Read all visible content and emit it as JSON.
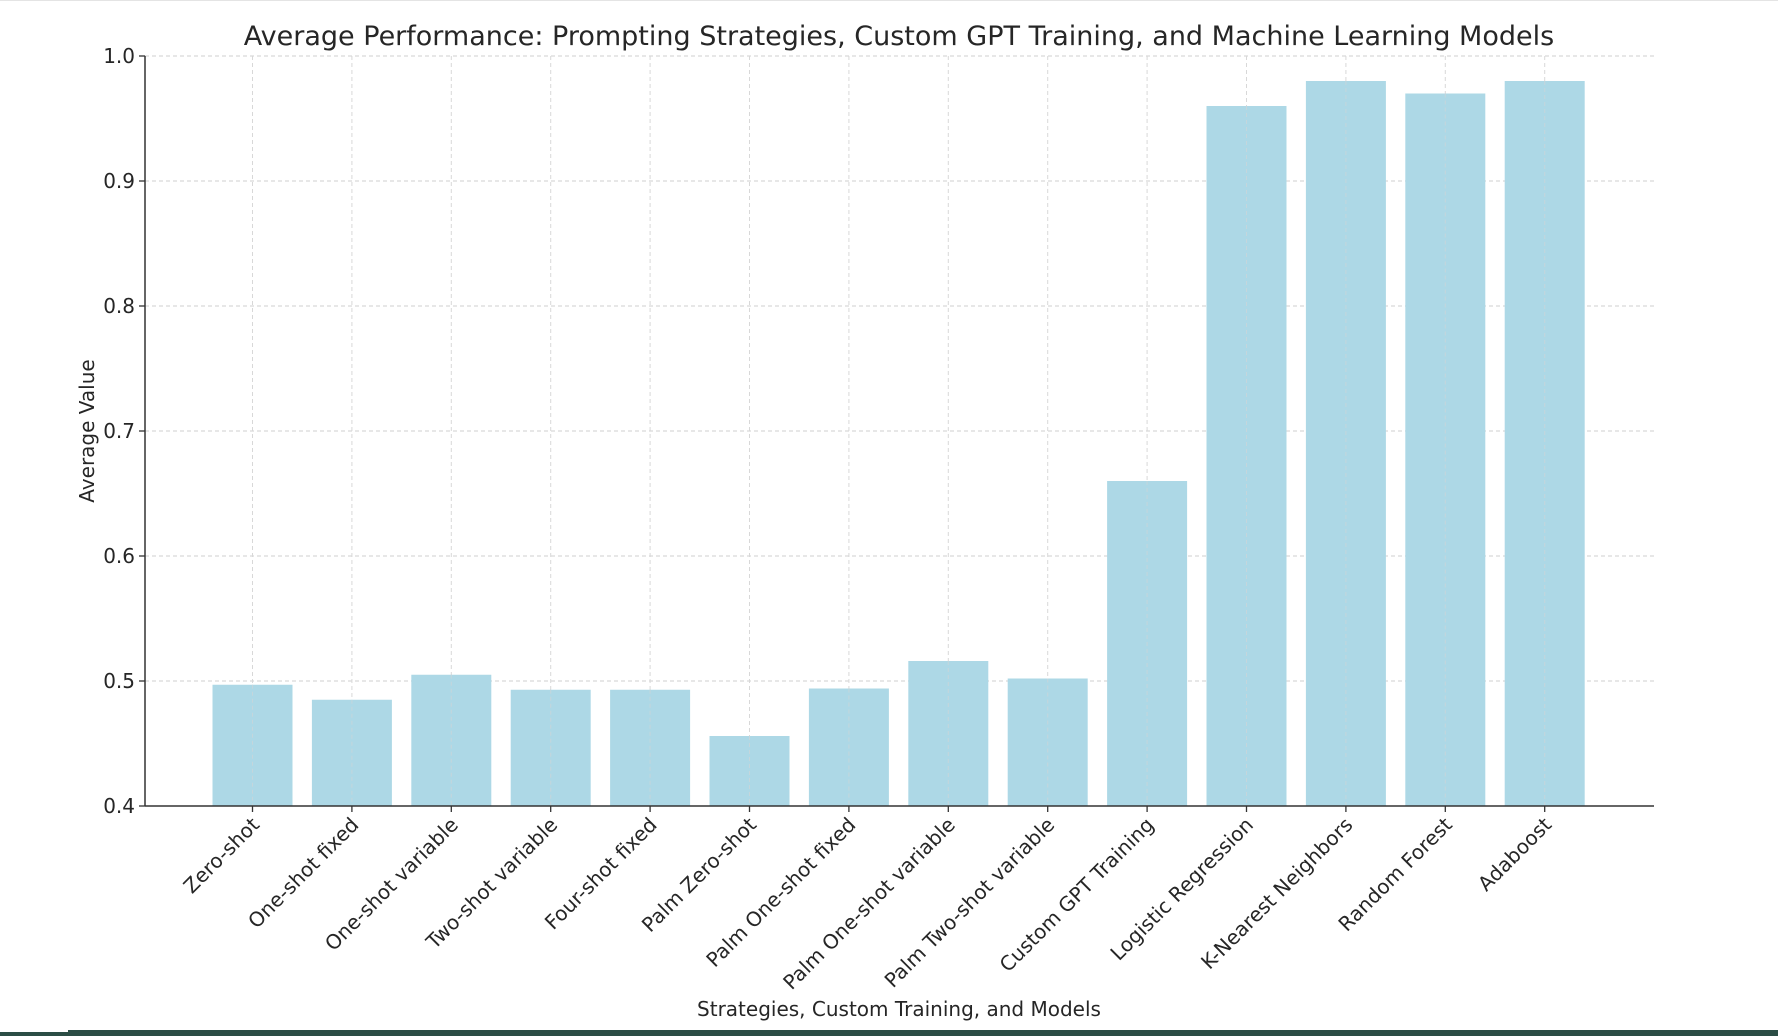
{
  "chart_data": {
    "type": "bar",
    "title": "Average Performance: Prompting Strategies, Custom GPT Training, and Machine Learning Models",
    "xlabel": "Strategies, Custom Training, and Models",
    "ylabel": "Average Value",
    "ylim": [
      0.4,
      1.0
    ],
    "yticks": [
      "0.4",
      "0.5",
      "0.6",
      "0.7",
      "0.8",
      "0.9",
      "1.0"
    ],
    "grid": true,
    "bar_color": "#add8e6",
    "categories": [
      "Zero-shot",
      "One-shot fixed",
      "One-shot variable",
      "Two-shot variable",
      "Four-shot fixed",
      "Palm Zero-shot",
      "Palm One-shot fixed",
      "Palm One-shot variable",
      "Palm Two-shot variable",
      "Custom GPT Training",
      "Logistic Regression",
      "K-Nearest Neighbors",
      "Random Forest",
      "Adaboost"
    ],
    "values": [
      0.497,
      0.485,
      0.505,
      0.493,
      0.493,
      0.456,
      0.494,
      0.516,
      0.502,
      0.66,
      0.96,
      0.98,
      0.97,
      0.98
    ]
  }
}
